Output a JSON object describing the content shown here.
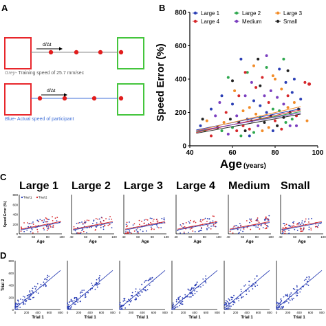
{
  "panels": {
    "a": "A",
    "b": "B",
    "c": "C",
    "d": "D"
  },
  "schematic": {
    "arrow_label": "d/Δt",
    "grey_label_prefix": "Grey",
    "grey_label_rest": "- Training speed of 25.7 mm/sec",
    "blue_label_prefix": "Blue",
    "blue_label_rest": "- Actual speed of participant",
    "colors": {
      "start_box": "#e8262b",
      "end_box": "#44c53c",
      "dot": "#e11d1d",
      "grey_line": "#8a8a8a",
      "blue_line": "#3f6fd8",
      "grey_text": "#888888",
      "blue_text": "#3f6fd8"
    }
  },
  "chart_data": [
    {
      "panel": "B",
      "type": "scatter",
      "title": "",
      "xlabel": "Age",
      "xlabel_unit": "(years)",
      "ylabel": "Speed Error (%)",
      "xlim": [
        40,
        100
      ],
      "ylim": [
        0,
        800
      ],
      "xticks": [
        40,
        60,
        80,
        100
      ],
      "yticks": [
        0,
        200,
        400,
        600,
        800
      ],
      "legend_position": "top",
      "series": [
        {
          "name": "Large 1",
          "color": "#2b3fb5",
          "marker": "circle",
          "trend": {
            "x0": 43,
            "y0": 95,
            "x1": 92,
            "y1": 222
          }
        },
        {
          "name": "Large 2",
          "color": "#2fa84f",
          "marker": "circle",
          "trend": {
            "x0": 43,
            "y0": 85,
            "x1": 92,
            "y1": 205
          }
        },
        {
          "name": "Large 3",
          "color": "#f28c28",
          "marker": "circle",
          "trend": {
            "x0": 43,
            "y0": 90,
            "x1": 92,
            "y1": 235
          }
        },
        {
          "name": "Large 4",
          "color": "#d6282c",
          "marker": "circle",
          "trend": {
            "x0": 43,
            "y0": 80,
            "x1": 92,
            "y1": 215
          }
        },
        {
          "name": "Medium",
          "color": "#7b3fbf",
          "marker": "circle",
          "trend": {
            "x0": 43,
            "y0": 88,
            "x1": 92,
            "y1": 198
          }
        },
        {
          "name": "Small",
          "color": "#222222",
          "marker": "circle",
          "trend": {
            "x0": 43,
            "y0": 75,
            "x1": 92,
            "y1": 190
          }
        }
      ],
      "points_note_free": true,
      "points": [
        [
          45,
          120,
          0
        ],
        [
          47,
          90,
          1
        ],
        [
          48,
          150,
          2
        ],
        [
          50,
          60,
          3
        ],
        [
          52,
          180,
          4
        ],
        [
          53,
          110,
          5
        ],
        [
          55,
          300,
          0
        ],
        [
          55,
          90,
          1
        ],
        [
          56,
          140,
          2
        ],
        [
          57,
          200,
          3
        ],
        [
          58,
          70,
          4
        ],
        [
          59,
          160,
          5
        ],
        [
          60,
          250,
          0
        ],
        [
          60,
          110,
          1
        ],
        [
          61,
          330,
          2
        ],
        [
          62,
          90,
          3
        ],
        [
          62,
          180,
          4
        ],
        [
          63,
          140,
          5
        ],
        [
          64,
          520,
          0
        ],
        [
          64,
          60,
          1
        ],
        [
          65,
          210,
          2
        ],
        [
          65,
          120,
          3
        ],
        [
          66,
          300,
          4
        ],
        [
          66,
          90,
          5
        ],
        [
          67,
          160,
          0
        ],
        [
          67,
          440,
          1
        ],
        [
          68,
          230,
          2
        ],
        [
          68,
          100,
          3
        ],
        [
          69,
          380,
          4
        ],
        [
          69,
          150,
          5
        ],
        [
          70,
          270,
          0
        ],
        [
          70,
          80,
          1
        ],
        [
          71,
          190,
          2
        ],
        [
          71,
          350,
          3
        ],
        [
          72,
          120,
          4
        ],
        [
          72,
          520,
          5
        ],
        [
          73,
          240,
          0
        ],
        [
          73,
          170,
          1
        ],
        [
          74,
          90,
          2
        ],
        [
          74,
          410,
          3
        ],
        [
          75,
          300,
          4
        ],
        [
          75,
          140,
          5
        ],
        [
          76,
          200,
          0
        ],
        [
          76,
          470,
          1
        ],
        [
          77,
          110,
          2
        ],
        [
          77,
          260,
          3
        ],
        [
          78,
          330,
          4
        ],
        [
          78,
          180,
          5
        ],
        [
          79,
          90,
          0
        ],
        [
          79,
          220,
          1
        ],
        [
          80,
          400,
          2
        ],
        [
          80,
          150,
          3
        ],
        [
          81,
          290,
          4
        ],
        [
          81,
          120,
          5
        ],
        [
          82,
          460,
          0
        ],
        [
          82,
          210,
          1
        ],
        [
          83,
          340,
          2
        ],
        [
          83,
          100,
          3
        ],
        [
          84,
          250,
          4
        ],
        [
          84,
          170,
          5
        ],
        [
          85,
          380,
          0
        ],
        [
          85,
          140,
          1
        ],
        [
          86,
          230,
          2
        ],
        [
          86,
          300,
          3
        ],
        [
          87,
          120,
          4
        ],
        [
          87,
          200,
          5
        ],
        [
          88,
          320,
          0
        ],
        [
          88,
          160,
          1
        ],
        [
          89,
          260,
          2
        ],
        [
          90,
          180,
          3
        ],
        [
          90,
          120,
          4
        ],
        [
          91,
          220,
          5
        ],
        [
          92,
          280,
          0
        ],
        [
          94,
          380,
          3
        ],
        [
          95,
          150,
          2
        ],
        [
          58,
          410,
          1
        ],
        [
          63,
          300,
          3
        ],
        [
          70,
          480,
          2
        ],
        [
          76,
          540,
          4
        ],
        [
          84,
          520,
          1
        ],
        [
          50,
          220,
          0
        ],
        [
          54,
          260,
          4
        ],
        [
          60,
          390,
          5
        ],
        [
          66,
          440,
          3
        ],
        [
          73,
          360,
          5
        ],
        [
          79,
          420,
          2
        ],
        [
          86,
          450,
          5
        ],
        [
          89,
          400,
          0
        ],
        [
          46,
          160,
          5
        ],
        [
          68,
          60,
          0
        ]
      ]
    },
    {
      "panel": "C",
      "type": "scatter",
      "titles": [
        "Large 1",
        "Large 2",
        "Large 3",
        "Large 4",
        "Medium",
        "Small"
      ],
      "xlabel": "Age",
      "ylabel": "Speed Error (%)",
      "xlim": [
        40,
        100
      ],
      "ylim": [
        0,
        800
      ],
      "xticks": [
        40,
        60,
        80,
        100
      ],
      "yticks": [
        0,
        200,
        400,
        600,
        800
      ],
      "legend": [
        "Trial 1",
        "Trial 2"
      ],
      "series_colors": {
        "Trial 1": "#2b3fb5",
        "Trial 2": "#d6282c"
      },
      "trend": {
        "x0": 42,
        "y0": 80,
        "x1": 98,
        "y1": 230
      }
    },
    {
      "panel": "D",
      "type": "scatter",
      "xlabel": "Trial 1",
      "ylabel": "Trial 2",
      "xlim": [
        0,
        800
      ],
      "ylim": [
        0,
        800
      ],
      "xticks": [
        0,
        200,
        400,
        600,
        800
      ],
      "yticks": [
        0,
        200,
        400,
        600,
        800
      ],
      "series_colors": {
        "points": "#2b3fb5",
        "trend": "#2b3fb5"
      },
      "trend": {
        "x0": 0,
        "y0": 20,
        "x1": 800,
        "y1": 640
      }
    }
  ]
}
